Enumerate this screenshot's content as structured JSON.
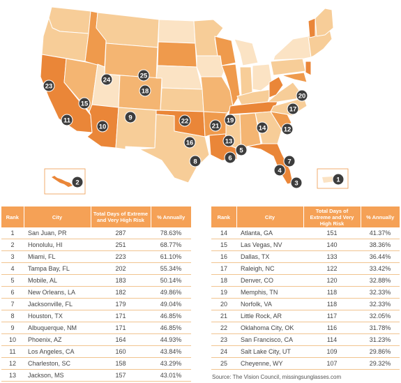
{
  "map": {
    "colors": {
      "lightest": "#fbe3c4",
      "light": "#f7cd98",
      "medium": "#f4b572",
      "dark": "#ef9a4c",
      "darkest": "#ea8638",
      "marker": "#3d3d3d",
      "marker_text": "#ffffff"
    },
    "markers": [
      {
        "rank": "1",
        "city": "San Juan, PR"
      },
      {
        "rank": "2",
        "city": "Honolulu, HI"
      },
      {
        "rank": "3",
        "city": "Miami, FL"
      },
      {
        "rank": "4",
        "city": "Tampa Bay, FL"
      },
      {
        "rank": "5",
        "city": "Mobile, AL"
      },
      {
        "rank": "6",
        "city": "New Orleans, LA"
      },
      {
        "rank": "7",
        "city": "Jacksonville, FL"
      },
      {
        "rank": "8",
        "city": "Houston, TX"
      },
      {
        "rank": "9",
        "city": "Albuquerque, NM"
      },
      {
        "rank": "10",
        "city": "Phoenix, AZ"
      },
      {
        "rank": "11",
        "city": "Los Angeles, CA"
      },
      {
        "rank": "12",
        "city": "Charleston, SC"
      },
      {
        "rank": "13",
        "city": "Jackson, MS"
      },
      {
        "rank": "14",
        "city": "Atlanta, GA"
      },
      {
        "rank": "15",
        "city": "Las Vegas, NV"
      },
      {
        "rank": "16",
        "city": "Dallas, TX"
      },
      {
        "rank": "17",
        "city": "Raleigh, NC"
      },
      {
        "rank": "18",
        "city": "Denver, CO"
      },
      {
        "rank": "19",
        "city": "Memphis, TN"
      },
      {
        "rank": "20",
        "city": "Norfolk, VA"
      },
      {
        "rank": "21",
        "city": "Little Rock, AR"
      },
      {
        "rank": "22",
        "city": "Oklahoma City, OK"
      },
      {
        "rank": "23",
        "city": "San Francisco, CA"
      },
      {
        "rank": "24",
        "city": "Salt Lake City, UT"
      },
      {
        "rank": "25",
        "city": "Cheyenne, WY"
      }
    ]
  },
  "table": {
    "headers": {
      "rank": "Rank",
      "city": "City",
      "days": "Total Days of Extreme and Very High Risk",
      "pct": "% Annually"
    },
    "left_rows": [
      {
        "rank": "1",
        "city": "San Juan, PR",
        "days": "287",
        "pct": "78.63%"
      },
      {
        "rank": "2",
        "city": "Honolulu, HI",
        "days": "251",
        "pct": "68.77%"
      },
      {
        "rank": "3",
        "city": "Miami, FL",
        "days": "223",
        "pct": "61.10%"
      },
      {
        "rank": "4",
        "city": "Tampa Bay, FL",
        "days": "202",
        "pct": "55.34%"
      },
      {
        "rank": "5",
        "city": "Mobile, AL",
        "days": "183",
        "pct": "50.14%"
      },
      {
        "rank": "6",
        "city": "New Orleans, LA",
        "days": "182",
        "pct": "49.86%"
      },
      {
        "rank": "7",
        "city": "Jacksonville, FL",
        "days": "179",
        "pct": "49.04%"
      },
      {
        "rank": "8",
        "city": "Houston, TX",
        "days": "171",
        "pct": "46.85%"
      },
      {
        "rank": "9",
        "city": "Albuquerque, NM",
        "days": "171",
        "pct": "46.85%"
      },
      {
        "rank": "10",
        "city": "Phoenix, AZ",
        "days": "164",
        "pct": "44.93%"
      },
      {
        "rank": "11",
        "city": "Los Angeles, CA",
        "days": "160",
        "pct": "43.84%"
      },
      {
        "rank": "12",
        "city": "Charleston, SC",
        "days": "158",
        "pct": "43.29%"
      },
      {
        "rank": "13",
        "city": "Jackson, MS",
        "days": "157",
        "pct": "43.01%"
      }
    ],
    "right_rows": [
      {
        "rank": "14",
        "city": "Atlanta, GA",
        "days": "151",
        "pct": "41.37%"
      },
      {
        "rank": "15",
        "city": "Las Vegas, NV",
        "days": "140",
        "pct": "38.36%"
      },
      {
        "rank": "16",
        "city": "Dallas, TX",
        "days": "133",
        "pct": "36.44%"
      },
      {
        "rank": "17",
        "city": "Raleigh, NC",
        "days": "122",
        "pct": "33.42%"
      },
      {
        "rank": "18",
        "city": "Denver, CO",
        "days": "120",
        "pct": "32.88%"
      },
      {
        "rank": "19",
        "city": "Memphis, TN",
        "days": "118",
        "pct": "32.33%"
      },
      {
        "rank": "20",
        "city": "Norfolk, VA",
        "days": "118",
        "pct": "32.33%"
      },
      {
        "rank": "21",
        "city": "Little Rock, AR",
        "days": "117",
        "pct": "32.05%"
      },
      {
        "rank": "22",
        "city": "Oklahoma City, OK",
        "days": "116",
        "pct": "31.78%"
      },
      {
        "rank": "23",
        "city": "San Francisco, CA",
        "days": "114",
        "pct": "31.23%"
      },
      {
        "rank": "24",
        "city": "Salt Lake City, UT",
        "days": "109",
        "pct": "29.86%"
      },
      {
        "rank": "25",
        "city": "Cheyenne, WY",
        "days": "107",
        "pct": "29.32%"
      }
    ]
  },
  "source": "Source: The Vision Council, missingsunglasses.com"
}
